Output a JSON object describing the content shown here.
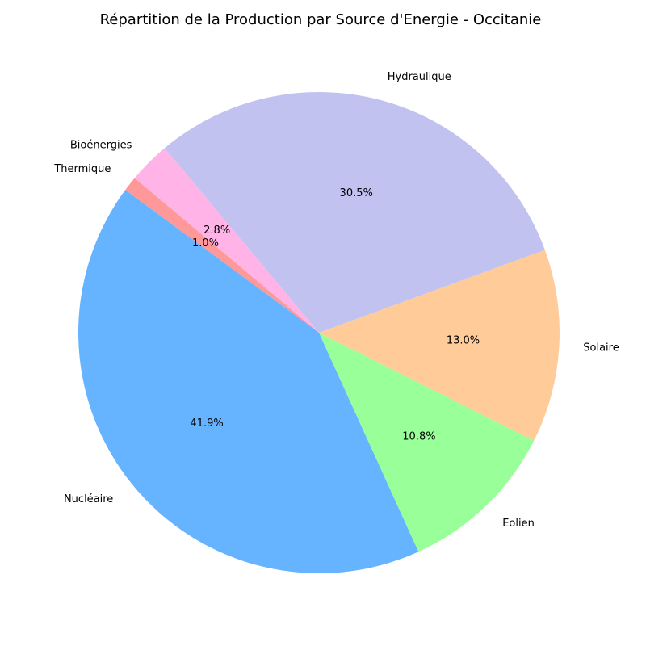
{
  "chart_data": {
    "type": "pie",
    "title": "Répartition de la Production par Source d'Energie - Occitanie",
    "start_angle_deg": 140,
    "direction": "counterclockwise",
    "slices": [
      {
        "label": "Thermique",
        "value": 1.0,
        "pct_label": "1.0%",
        "color": "#ff9999"
      },
      {
        "label": "Nucléaire",
        "value": 41.9,
        "pct_label": "41.9%",
        "color": "#66b3ff"
      },
      {
        "label": "Eolien",
        "value": 10.8,
        "pct_label": "10.8%",
        "color": "#99ff99"
      },
      {
        "label": "Solaire",
        "value": 13.0,
        "pct_label": "13.0%",
        "color": "#ffcc99"
      },
      {
        "label": "Hydraulique",
        "value": 30.5,
        "pct_label": "30.5%",
        "color": "#c2c2f0"
      },
      {
        "label": "Bioénergies",
        "value": 2.8,
        "pct_label": "2.8%",
        "color": "#ffb3e6"
      }
    ]
  }
}
